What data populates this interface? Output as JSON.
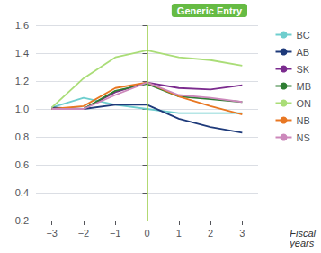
{
  "chart_data": {
    "type": "line",
    "x": [
      -3,
      -2,
      -1,
      0,
      1,
      2,
      3
    ],
    "series": [
      {
        "name": "BC",
        "color": "#6ecece",
        "values": [
          1.01,
          1.08,
          1.03,
          1.0,
          0.97,
          0.97,
          0.97
        ]
      },
      {
        "name": "AB",
        "color": "#1e3a7a",
        "values": [
          1.01,
          1.0,
          1.03,
          1.03,
          0.93,
          0.87,
          0.83
        ]
      },
      {
        "name": "SK",
        "color": "#7b2b8e",
        "values": [
          1.0,
          1.0,
          1.12,
          1.19,
          1.15,
          1.14,
          1.17
        ]
      },
      {
        "name": "MB",
        "color": "#2e7d32",
        "values": [
          1.0,
          1.0,
          1.13,
          1.18,
          1.09,
          1.07,
          1.05
        ]
      },
      {
        "name": "ON",
        "color": "#aadd77",
        "values": [
          1.01,
          1.22,
          1.37,
          1.42,
          1.37,
          1.35,
          1.31
        ]
      },
      {
        "name": "NB",
        "color": "#e87722",
        "values": [
          1.0,
          1.02,
          1.15,
          1.19,
          1.09,
          1.02,
          0.96
        ]
      },
      {
        "name": "NS",
        "color": "#cc88bb",
        "values": [
          1.0,
          1.0,
          1.1,
          1.19,
          1.1,
          1.08,
          1.05
        ]
      }
    ],
    "xlim": [
      -3.5,
      3.5
    ],
    "xticks": [
      {
        "value": -3,
        "label": "−3"
      },
      {
        "value": -2,
        "label": "−2"
      },
      {
        "value": -1,
        "label": "−1"
      },
      0,
      1,
      2,
      3
    ],
    "ylim": [
      0.2,
      1.6
    ],
    "yticks": [
      0.2,
      0.4,
      0.6,
      0.8,
      {
        "value": 1.0,
        "label": "1.0"
      },
      1.2,
      1.4,
      1.6
    ],
    "xlabel": "Fiscal\nyears",
    "vline": {
      "x": 0,
      "color": "#99cc44"
    },
    "annotations": [
      {
        "text": "Generic Entry",
        "color": "#66bb44"
      }
    ],
    "grid": true,
    "legend": "right"
  }
}
